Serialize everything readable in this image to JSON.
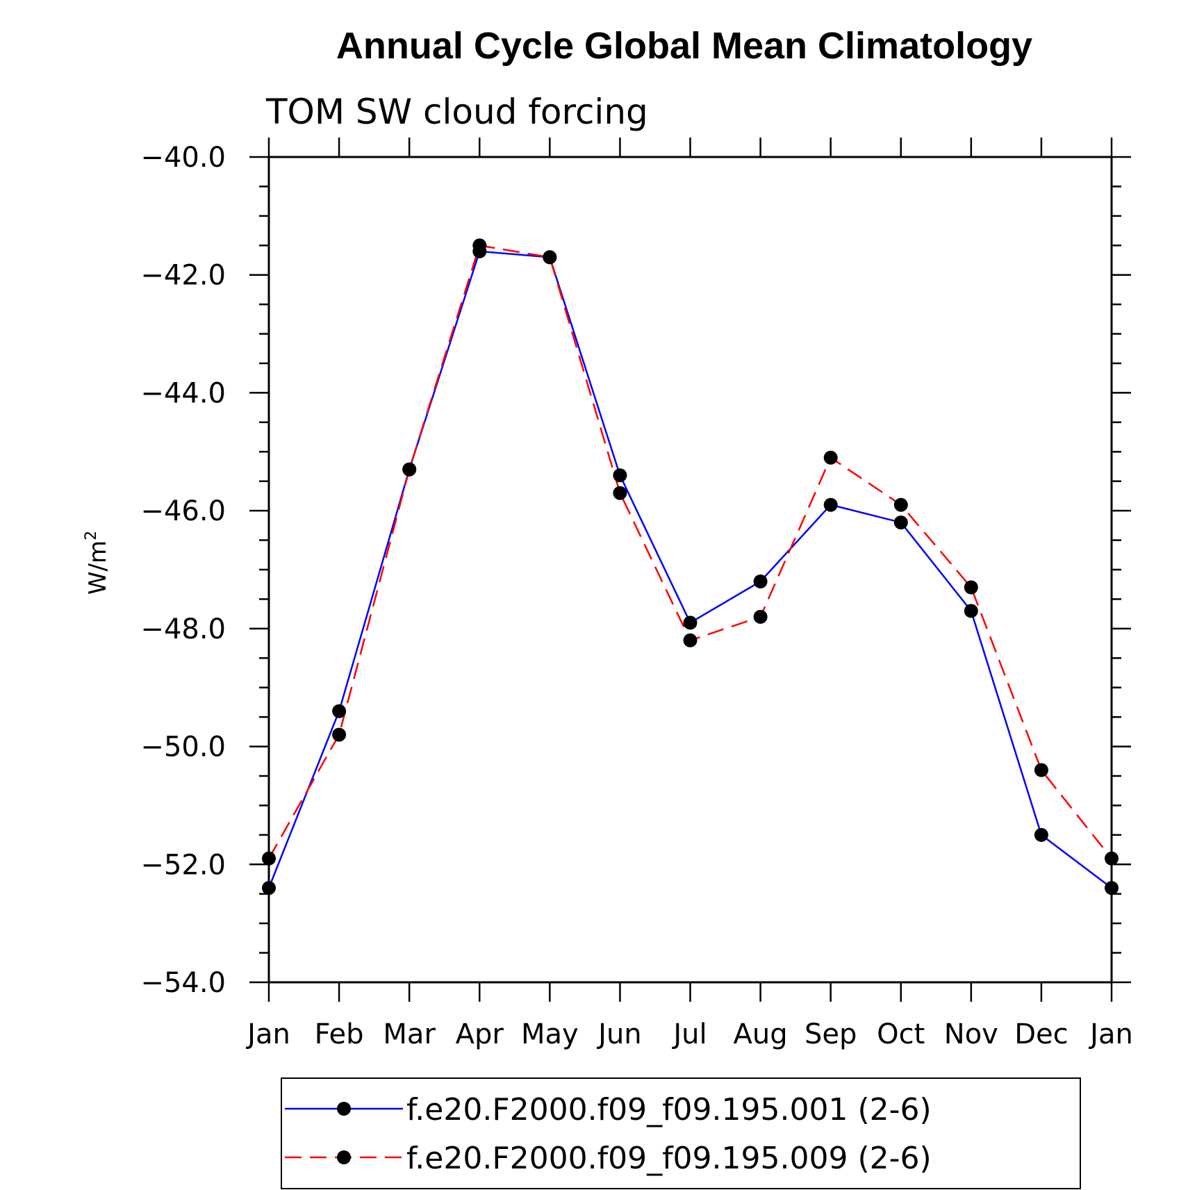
{
  "chart_data": {
    "type": "line",
    "title": "Annual Cycle Global Mean Climatology",
    "subtitle": "TOM SW cloud forcing",
    "ylabel": "W/m",
    "ylabel_superscript": "2",
    "ylim": [
      -54.0,
      -40.0
    ],
    "yticks": [
      "-40.0",
      "-42.0",
      "-44.0",
      "-46.0",
      "-48.0",
      "-50.0",
      "-52.0",
      "-54.0"
    ],
    "categories": [
      "Jan",
      "Feb",
      "Mar",
      "Apr",
      "May",
      "Jun",
      "Jul",
      "Aug",
      "Sep",
      "Oct",
      "Nov",
      "Dec",
      "Jan"
    ],
    "grid": false,
    "legend_position": "bottom",
    "series": [
      {
        "name": "f.e20.F2000.f09_f09.195.001 (2-6)",
        "color": "#0000ff",
        "dash": "solid",
        "values": [
          -52.4,
          -49.4,
          -45.3,
          -41.6,
          -41.7,
          -45.4,
          -47.9,
          -47.2,
          -45.9,
          -46.2,
          -47.7,
          -51.5,
          -52.4
        ]
      },
      {
        "name": "f.e20.F2000.f09_f09.195.009 (2-6)",
        "color": "#ff0000",
        "dash": "dashed",
        "values": [
          -51.9,
          -49.8,
          -45.3,
          -41.5,
          -41.7,
          -45.7,
          -48.2,
          -47.8,
          -45.1,
          -45.9,
          -47.3,
          -50.4,
          -51.9
        ]
      }
    ]
  }
}
